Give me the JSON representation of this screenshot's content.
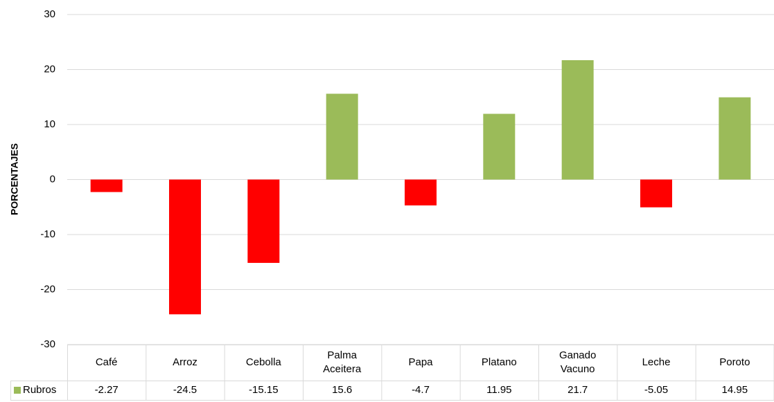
{
  "chart_data": {
    "type": "bar",
    "y_label": "PORCENTAJES",
    "categories": [
      "Café",
      "Arroz",
      "Cebolla",
      "Palma Aceitera",
      "Papa",
      "Platano",
      "Ganado Vacuno",
      "Leche",
      "Poroto"
    ],
    "series": [
      {
        "name": "Rubros",
        "color": "#9bbb59",
        "negative_color": "#ff0000",
        "values": [
          -2.27,
          -24.5,
          -15.15,
          15.6,
          -4.7,
          11.95,
          21.7,
          -5.05,
          14.95
        ]
      }
    ],
    "ylim": [
      -30,
      30
    ],
    "yticks": [
      -30,
      -20,
      -10,
      0,
      10,
      20,
      30
    ],
    "grid": true,
    "data_table": true
  }
}
